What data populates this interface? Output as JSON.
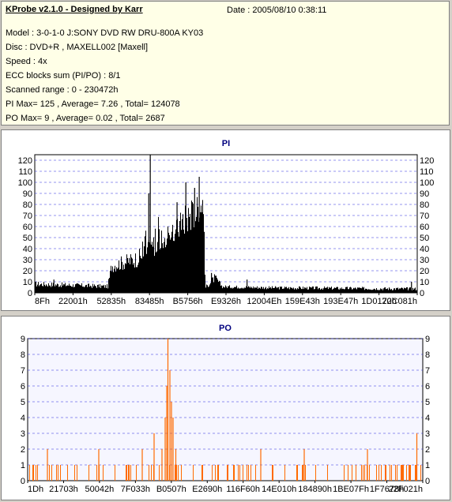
{
  "header": {
    "title": "KProbe v2.1.0 - Designed by Karr",
    "date": "Date : 2005/08/10 0:38:11",
    "lines": [
      "Model : 3-0-1-0 J:SONY    DVD RW DRU-800A  KY03",
      "Disc : DVD+R , MAXELL002 [Maxell]",
      "Speed : 4x",
      "ECC blocks sum (PI/PO) : 8/1",
      "Scanned range : 0 - 230472h",
      "PI Max= 125 , Average= 7.26 , Total= 124078",
      "PO Max= 9 , Average= 0.02 , Total= 2687"
    ]
  },
  "colors": {
    "pi_bars": "#000000",
    "po_bars": "#ff6a00",
    "grid": "#2a2adf",
    "title": "#00007f",
    "plot_bg": "#ffffff",
    "po_plot_bg": "#f6f6ff"
  },
  "chart_data": [
    {
      "type": "bar",
      "title": "PI",
      "ylim": [
        0,
        125
      ],
      "yticks": [
        0,
        10,
        20,
        30,
        40,
        50,
        60,
        70,
        80,
        90,
        100,
        110,
        120
      ],
      "xticks": [
        "8Fh",
        "22001h",
        "52835h",
        "83485h",
        "B5756h",
        "E9326h",
        "12004Eh",
        "159E43h",
        "193E47h",
        "1D0172h",
        "20C081h"
      ],
      "grid": true,
      "profile": [
        {
          "x": 0.0,
          "base": 7,
          "var": 5
        },
        {
          "x": 0.19,
          "base": 5,
          "var": 4
        },
        {
          "x": 0.2,
          "base": 22,
          "var": 12
        },
        {
          "x": 0.27,
          "base": 28,
          "var": 16
        },
        {
          "x": 0.32,
          "base": 42,
          "var": 22
        },
        {
          "x": 0.36,
          "base": 48,
          "var": 20
        },
        {
          "x": 0.39,
          "base": 60,
          "var": 30
        },
        {
          "x": 0.42,
          "base": 68,
          "var": 28
        },
        {
          "x": 0.44,
          "base": 78,
          "var": 22
        },
        {
          "x": 0.445,
          "base": 4,
          "var": 3
        },
        {
          "x": 0.47,
          "base": 12,
          "var": 8
        },
        {
          "x": 0.49,
          "base": 5,
          "var": 3
        },
        {
          "x": 0.62,
          "base": 4,
          "var": 3
        },
        {
          "x": 1.0,
          "base": 3,
          "var": 3
        }
      ],
      "spikes": [
        {
          "x": 0.302,
          "value": 125
        },
        {
          "x": 0.395,
          "value": 100
        },
        {
          "x": 0.43,
          "value": 105
        },
        {
          "x": 0.298,
          "value": 90
        },
        {
          "x": 0.418,
          "value": 95
        },
        {
          "x": 0.372,
          "value": 82
        },
        {
          "x": 0.462,
          "value": 18
        },
        {
          "x": 0.555,
          "value": 12
        },
        {
          "x": 0.985,
          "value": 10
        },
        {
          "x": 0.05,
          "value": 12
        }
      ]
    },
    {
      "type": "bar",
      "title": "PO",
      "ylim": [
        0,
        9
      ],
      "yticks": [
        0,
        1,
        2,
        3,
        4,
        5,
        6,
        7,
        8,
        9
      ],
      "xticks": [
        "1Dh",
        "21703h",
        "50042h",
        "7F033h",
        "B0507h",
        "E2690h",
        "116F60h",
        "14E010h",
        "184890h",
        "1BE07Fh",
        "1F7678h",
        "22F021h"
      ],
      "grid": true,
      "spikes": [
        {
          "x": 0.355,
          "value": 9
        },
        {
          "x": 0.36,
          "value": 7
        },
        {
          "x": 0.352,
          "value": 6
        },
        {
          "x": 0.364,
          "value": 5
        },
        {
          "x": 0.368,
          "value": 4
        },
        {
          "x": 0.348,
          "value": 4
        },
        {
          "x": 0.32,
          "value": 3
        },
        {
          "x": 0.985,
          "value": 3
        },
        {
          "x": 0.34,
          "value": 2
        },
        {
          "x": 0.375,
          "value": 2
        },
        {
          "x": 0.05,
          "value": 2
        },
        {
          "x": 0.18,
          "value": 2
        },
        {
          "x": 0.29,
          "value": 2
        },
        {
          "x": 0.59,
          "value": 2
        },
        {
          "x": 0.7,
          "value": 2
        },
        {
          "x": 0.86,
          "value": 2
        }
      ]
    }
  ]
}
